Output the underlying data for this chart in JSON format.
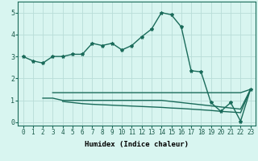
{
  "x": [
    0,
    1,
    2,
    3,
    4,
    5,
    6,
    7,
    8,
    9,
    10,
    11,
    12,
    13,
    14,
    15,
    16,
    17,
    18,
    19,
    20,
    21,
    22,
    23
  ],
  "line1": [
    3.0,
    2.8,
    2.7,
    3.0,
    3.0,
    3.1,
    3.1,
    3.6,
    3.5,
    3.6,
    3.3,
    3.5,
    3.9,
    4.25,
    5.0,
    4.9,
    4.35,
    2.35,
    2.3,
    0.9,
    0.5,
    0.9,
    0.05,
    1.5
  ],
  "line2": [
    null,
    null,
    null,
    1.35,
    1.35,
    1.35,
    1.35,
    1.35,
    1.35,
    1.35,
    1.35,
    1.35,
    1.35,
    1.35,
    1.35,
    1.35,
    1.35,
    1.35,
    1.35,
    1.35,
    1.35,
    1.35,
    1.35,
    1.5
  ],
  "line3": [
    null,
    null,
    1.1,
    1.1,
    1.0,
    1.0,
    1.0,
    1.0,
    1.0,
    1.0,
    1.0,
    1.0,
    1.0,
    1.0,
    1.0,
    0.95,
    0.9,
    0.85,
    0.8,
    0.75,
    0.7,
    0.65,
    0.6,
    1.5
  ],
  "line4": [
    null,
    null,
    null,
    null,
    0.95,
    0.9,
    0.85,
    0.82,
    0.8,
    0.78,
    0.76,
    0.74,
    0.72,
    0.7,
    0.68,
    0.65,
    0.63,
    0.6,
    0.57,
    0.54,
    0.5,
    0.47,
    0.44,
    1.5
  ],
  "line_color": "#1a6b5a",
  "bg_color": "#d8f5f0",
  "grid_color": "#b8ddd8",
  "xlabel": "Humidex (Indice chaleur)",
  "ylim": [
    -0.15,
    5.5
  ],
  "xlim": [
    -0.5,
    23.5
  ],
  "yticks": [
    0,
    1,
    2,
    3,
    4,
    5
  ],
  "xticks": [
    0,
    1,
    2,
    3,
    4,
    5,
    6,
    7,
    8,
    9,
    10,
    11,
    12,
    13,
    14,
    15,
    16,
    17,
    18,
    19,
    20,
    21,
    22,
    23
  ],
  "marker": "*",
  "marker_size": 3,
  "linewidth": 1.0,
  "tick_fontsize": 5.5,
  "xlabel_fontsize": 6.5
}
